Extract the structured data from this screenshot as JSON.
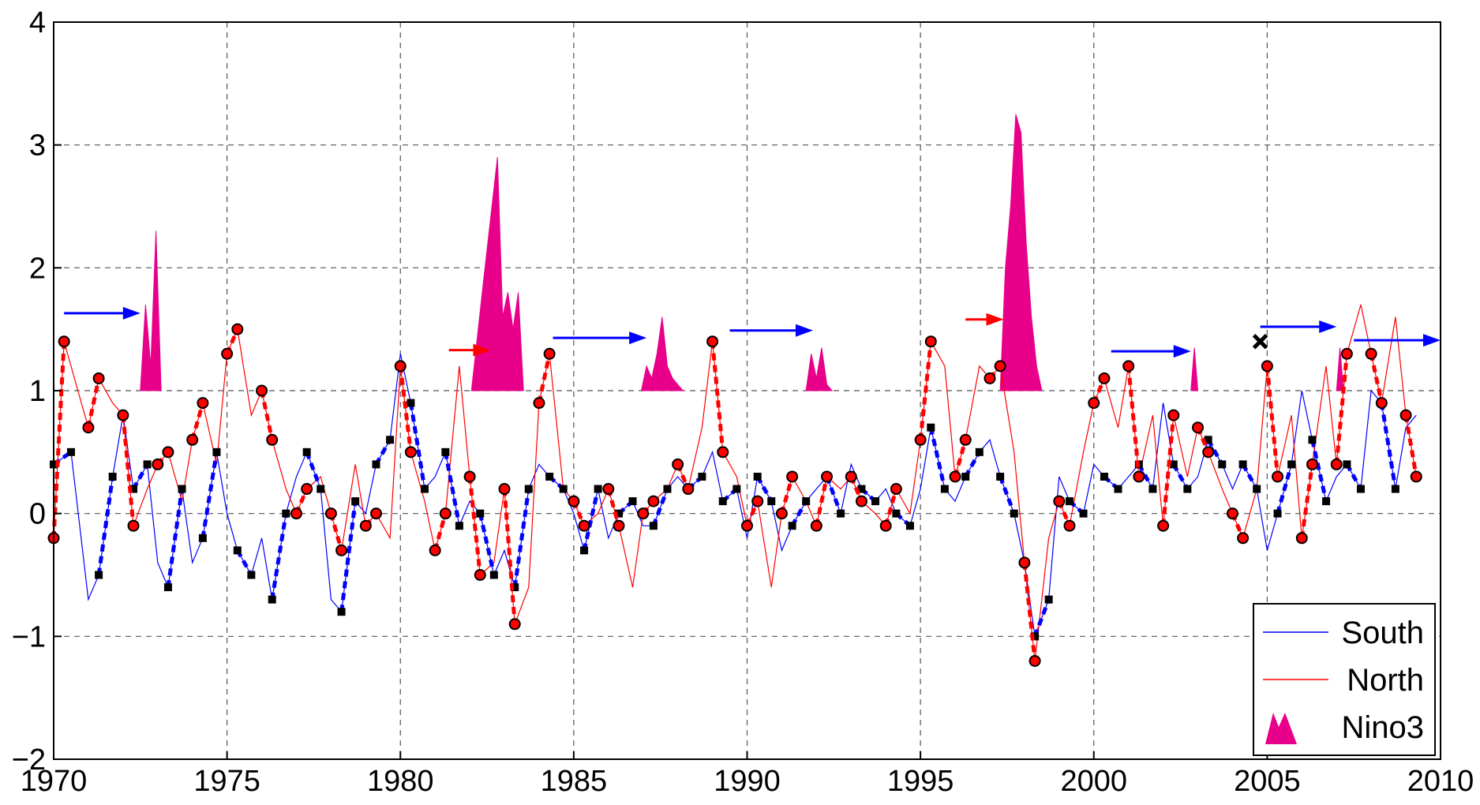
{
  "chart_data": {
    "type": "line",
    "title": "",
    "xlabel": "",
    "ylabel": "",
    "xlim": [
      1970,
      2010
    ],
    "ylim": [
      -2,
      4
    ],
    "grid": true,
    "legend_position": "bottom-right",
    "x_ticks": [
      "1970",
      "1975",
      "1980",
      "1985",
      "1990",
      "1995",
      "2000",
      "2005",
      "2010"
    ],
    "y_ticks": [
      "4",
      "3",
      "2",
      "1",
      "0",
      "−1",
      "−2"
    ],
    "series": [
      {
        "name": "South",
        "color": "#0000ff",
        "x": [
          1970.0,
          1970.5,
          1971.0,
          1971.3,
          1971.7,
          1972.0,
          1972.3,
          1972.7,
          1973.0,
          1973.3,
          1973.7,
          1974.0,
          1974.3,
          1974.7,
          1975.0,
          1975.3,
          1975.7,
          1976.0,
          1976.3,
          1976.7,
          1977.0,
          1977.3,
          1977.7,
          1978.0,
          1978.3,
          1978.7,
          1979.0,
          1979.3,
          1979.7,
          1980.0,
          1980.3,
          1980.7,
          1981.0,
          1981.3,
          1981.7,
          1982.0,
          1982.3,
          1982.7,
          1983.0,
          1983.3,
          1983.7,
          1984.0,
          1984.3,
          1984.7,
          1985.0,
          1985.3,
          1985.7,
          1986.0,
          1986.3,
          1986.7,
          1987.0,
          1987.3,
          1987.7,
          1988.0,
          1988.3,
          1988.7,
          1989.0,
          1989.3,
          1989.7,
          1990.0,
          1990.3,
          1990.7,
          1991.0,
          1991.3,
          1991.7,
          1992.0,
          1992.3,
          1992.7,
          1993.0,
          1993.3,
          1993.7,
          1994.0,
          1994.3,
          1994.7,
          1995.0,
          1995.3,
          1995.7,
          1996.0,
          1996.3,
          1996.7,
          1997.0,
          1997.3,
          1997.7,
          1998.0,
          1998.3,
          1998.7,
          1999.0,
          1999.3,
          1999.7,
          2000.0,
          2000.3,
          2000.7,
          2001.0,
          2001.3,
          2001.7,
          2002.0,
          2002.3,
          2002.7,
          2003.0,
          2003.3,
          2003.7,
          2004.0,
          2004.3,
          2004.7,
          2005.0,
          2005.3,
          2005.7,
          2006.0,
          2006.3,
          2006.7,
          2007.0,
          2007.3,
          2007.7,
          2008.0,
          2008.3,
          2008.7,
          2009.0,
          2009.3
        ],
        "values": [
          0.4,
          0.5,
          -0.7,
          -0.5,
          0.3,
          0.8,
          0.2,
          0.4,
          -0.4,
          -0.6,
          0.2,
          -0.4,
          -0.2,
          0.5,
          0.0,
          -0.3,
          -0.5,
          -0.2,
          -0.7,
          0.0,
          0.3,
          0.5,
          0.2,
          -0.7,
          -0.8,
          0.1,
          0.0,
          0.4,
          0.6,
          1.3,
          0.9,
          0.2,
          0.3,
          0.5,
          -0.1,
          0.1,
          0.0,
          -0.5,
          -0.3,
          -0.6,
          0.2,
          0.4,
          0.3,
          0.2,
          0.0,
          -0.3,
          0.2,
          -0.2,
          0.0,
          0.1,
          -0.1,
          -0.1,
          0.2,
          0.3,
          0.2,
          0.3,
          0.5,
          0.1,
          0.2,
          -0.2,
          0.3,
          0.1,
          -0.3,
          -0.1,
          0.1,
          0.2,
          0.3,
          0.0,
          0.4,
          0.2,
          0.1,
          0.2,
          0.0,
          -0.1,
          0.2,
          0.7,
          0.2,
          0.1,
          0.3,
          0.5,
          0.6,
          0.3,
          0.0,
          -0.4,
          -1.0,
          -0.7,
          0.3,
          0.1,
          0.0,
          0.4,
          0.3,
          0.2,
          0.3,
          0.4,
          0.2,
          0.9,
          0.4,
          0.2,
          0.3,
          0.6,
          0.4,
          0.2,
          0.4,
          0.2,
          -0.3,
          0.0,
          0.4,
          1.0,
          0.6,
          0.1,
          0.3,
          0.4,
          0.2,
          1.0,
          0.9,
          0.2,
          0.7,
          0.8
        ]
      },
      {
        "name": "North",
        "color": "#ff0000",
        "x": [
          1970.0,
          1970.3,
          1970.7,
          1971.0,
          1971.3,
          1971.7,
          1972.0,
          1972.3,
          1972.7,
          1973.0,
          1973.3,
          1973.7,
          1974.0,
          1974.3,
          1974.7,
          1975.0,
          1975.3,
          1975.7,
          1976.0,
          1976.3,
          1976.7,
          1977.0,
          1977.3,
          1977.7,
          1978.0,
          1978.3,
          1978.7,
          1979.0,
          1979.3,
          1979.7,
          1980.0,
          1980.3,
          1980.7,
          1981.0,
          1981.3,
          1981.7,
          1982.0,
          1982.3,
          1982.7,
          1983.0,
          1983.3,
          1983.7,
          1984.0,
          1984.3,
          1984.7,
          1985.0,
          1985.3,
          1985.7,
          1986.0,
          1986.3,
          1986.7,
          1987.0,
          1987.3,
          1987.7,
          1988.0,
          1988.3,
          1988.7,
          1989.0,
          1989.3,
          1989.7,
          1990.0,
          1990.3,
          1990.7,
          1991.0,
          1991.3,
          1991.7,
          1992.0,
          1992.3,
          1992.7,
          1993.0,
          1993.3,
          1993.7,
          1994.0,
          1994.3,
          1994.7,
          1995.0,
          1995.3,
          1995.7,
          1996.0,
          1996.3,
          1996.7,
          1997.0,
          1997.3,
          1997.7,
          1998.0,
          1998.3,
          1998.7,
          1999.0,
          1999.3,
          1999.7,
          2000.0,
          2000.3,
          2000.7,
          2001.0,
          2001.3,
          2001.7,
          2002.0,
          2002.3,
          2002.7,
          2003.0,
          2003.3,
          2003.7,
          2004.0,
          2004.3,
          2004.7,
          2005.0,
          2005.3,
          2005.7,
          2006.0,
          2006.3,
          2006.7,
          2007.0,
          2007.3,
          2007.7,
          2008.0,
          2008.3,
          2008.7,
          2009.0,
          2009.3
        ],
        "values": [
          -0.2,
          1.4,
          1.0,
          0.7,
          1.1,
          0.9,
          0.8,
          -0.1,
          0.2,
          0.4,
          0.5,
          0.1,
          0.6,
          0.9,
          0.4,
          1.3,
          1.5,
          0.8,
          1.0,
          0.6,
          0.2,
          0.0,
          0.2,
          0.3,
          0.0,
          -0.3,
          0.4,
          -0.1,
          0.0,
          -0.2,
          1.2,
          0.5,
          0.1,
          -0.3,
          0.0,
          1.2,
          0.3,
          -0.5,
          -0.4,
          0.2,
          -0.9,
          -0.6,
          0.9,
          1.3,
          0.2,
          0.1,
          -0.1,
          0.0,
          0.2,
          -0.1,
          -0.6,
          0.0,
          0.1,
          0.2,
          0.4,
          0.2,
          0.7,
          1.4,
          0.5,
          0.3,
          -0.1,
          0.1,
          -0.6,
          0.0,
          0.3,
          0.1,
          -0.1,
          0.3,
          0.2,
          0.3,
          0.1,
          0.0,
          -0.1,
          0.2,
          0.0,
          0.6,
          1.4,
          1.2,
          0.3,
          0.6,
          1.2,
          1.1,
          1.2,
          0.5,
          -0.4,
          -1.2,
          -0.2,
          0.1,
          -0.1,
          0.5,
          0.9,
          1.1,
          0.7,
          1.2,
          0.3,
          0.8,
          -0.1,
          0.8,
          0.3,
          0.7,
          0.5,
          0.2,
          0.0,
          -0.2,
          0.2,
          1.2,
          0.3,
          0.8,
          -0.2,
          0.4,
          1.2,
          0.4,
          1.3,
          1.7,
          1.3,
          0.9,
          1.6,
          0.8,
          0.3
        ]
      },
      {
        "name": "Nino3",
        "type": "area",
        "color": "#e8008a",
        "baseline": 1,
        "x": [
          1972.5,
          1972.65,
          1972.8,
          1972.95,
          1973.1,
          1982.05,
          1982.4,
          1982.8,
          1982.95,
          1983.1,
          1983.25,
          1983.4,
          1983.55,
          1986.95,
          1987.1,
          1987.25,
          1987.4,
          1987.55,
          1987.7,
          1987.85,
          1988.0,
          1988.15,
          1991.7,
          1991.85,
          1992.0,
          1992.15,
          1992.3,
          1992.45,
          1997.3,
          1997.45,
          1997.6,
          1997.75,
          1997.9,
          1998.05,
          1998.2,
          1998.35,
          1998.5,
          2002.8,
          2002.9,
          2003.0,
          2007.0,
          2007.1,
          2007.2
        ],
        "values": [
          1,
          1.7,
          1.2,
          2.3,
          1,
          1,
          1.9,
          2.9,
          1.6,
          1.8,
          1.5,
          1.8,
          1,
          1,
          1.2,
          1.1,
          1.3,
          1.6,
          1.2,
          1.1,
          1.05,
          1,
          1,
          1.3,
          1.1,
          1.35,
          1.05,
          1,
          1,
          2.0,
          2.5,
          3.25,
          3.1,
          2.2,
          1.6,
          1.2,
          1,
          1,
          1.35,
          1,
          1,
          1.35,
          1
        ]
      }
    ],
    "arrows": [
      {
        "x_start": 1970.3,
        "x_end": 1972.5,
        "y": 1.63,
        "color": "#0000ff"
      },
      {
        "x_start": 1981.4,
        "x_end": 1982.6,
        "y": 1.33,
        "color": "#ff0000"
      },
      {
        "x_start": 1984.4,
        "x_end": 1987.1,
        "y": 1.43,
        "color": "#0000ff"
      },
      {
        "x_start": 1989.5,
        "x_end": 1991.9,
        "y": 1.49,
        "color": "#0000ff"
      },
      {
        "x_start": 1996.3,
        "x_end": 1997.4,
        "y": 1.58,
        "color": "#ff0000"
      },
      {
        "x_start": 2000.5,
        "x_end": 2002.8,
        "y": 1.32,
        "color": "#0000ff"
      },
      {
        "x_start": 2004.8,
        "x_end": 2007.0,
        "y": 1.52,
        "color": "#0000ff"
      },
      {
        "x_start": 2007.5,
        "x_end": 2010.0,
        "y": 1.41,
        "color": "#0000ff"
      }
    ],
    "marker_x": {
      "x": 2004.8,
      "y": 1.4
    }
  }
}
